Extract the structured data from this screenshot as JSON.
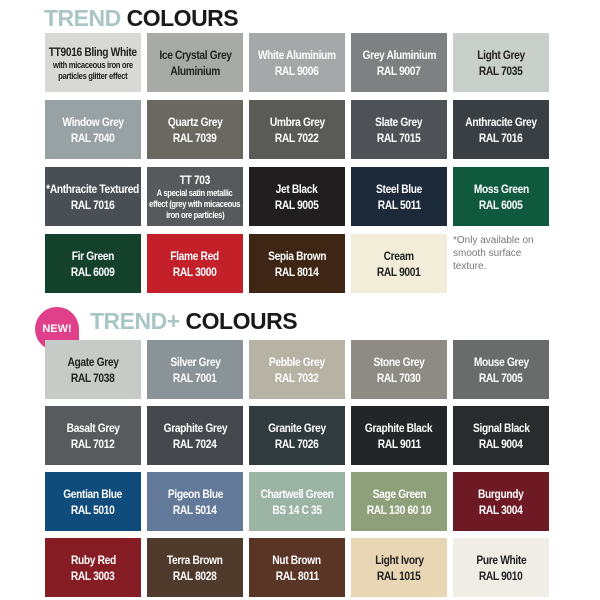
{
  "section1": {
    "title_a": "TREND",
    "title_b": "COLOURS",
    "swatches": [
      {
        "name": "TT9016 Bling White",
        "sub": [
          "with micaceous iron ore",
          "particles glitter effect"
        ],
        "color": "#d8d8d6",
        "text": "#222"
      },
      {
        "name": "Ice Crystal Grey",
        "code": "Aluminium",
        "color": "#a8aaa8",
        "text": "#222"
      },
      {
        "name": "White Aluminium",
        "code": "RAL 9006",
        "color": "#a5a7a8",
        "text": "#fff"
      },
      {
        "name": "Grey Aluminium",
        "code": "RAL 9007",
        "color": "#7e8081",
        "text": "#fff"
      },
      {
        "name": "Light Grey",
        "code": "RAL 7035",
        "color": "#c9cfcb",
        "text": "#222"
      },
      {
        "name": "Window Grey",
        "code": "RAL 7040",
        "color": "#98a1a4",
        "text": "#fff"
      },
      {
        "name": "Quartz Grey",
        "code": "RAL 7039",
        "color": "#6b6862",
        "text": "#fff"
      },
      {
        "name": "Umbra Grey",
        "code": "RAL 7022",
        "color": "#5a5a57",
        "text": "#fff"
      },
      {
        "name": "Slate Grey",
        "code": "RAL 7015",
        "color": "#4e5257",
        "text": "#fff"
      },
      {
        "name": "Anthracite Grey",
        "code": "RAL 7016",
        "color": "#393f43",
        "text": "#fff"
      },
      {
        "name": "*Anthracite Textured",
        "code": "RAL 7016",
        "color": "#4a4e55",
        "text": "#fff"
      },
      {
        "name": "TT 703",
        "sub": [
          "A special satin metallic",
          "effect (grey with micaceous",
          "iron ore particles)"
        ],
        "color": "#57595c",
        "text": "#fff"
      },
      {
        "name": "Jet Black",
        "code": "RAL 9005",
        "color": "#211e1f",
        "text": "#fff"
      },
      {
        "name": "Steel Blue",
        "code": "RAL 5011",
        "color": "#1c2a3a",
        "text": "#fff"
      },
      {
        "name": "Moss Green",
        "code": "RAL 6005",
        "color": "#0f5a3e",
        "text": "#fff"
      },
      {
        "name": "Fir Green",
        "code": "RAL 6009",
        "color": "#14412c",
        "text": "#fff"
      },
      {
        "name": "Flame Red",
        "code": "RAL 3000",
        "color": "#c3202a",
        "text": "#fff"
      },
      {
        "name": "Sepia Brown",
        "code": "RAL 8014",
        "color": "#3f2614",
        "text": "#fff"
      },
      {
        "name": "Cream",
        "code": "RAL 9001",
        "color": "#f1edd9",
        "text": "#222"
      }
    ],
    "footnote": "*Only available on smooth surface texture."
  },
  "section2": {
    "badge": "NEW!",
    "title_a": "TREND+",
    "title_b": "COLOURS",
    "swatches": [
      {
        "name": "Agate Grey",
        "code": "RAL 7038",
        "color": "#c6cbc8",
        "text": "#222"
      },
      {
        "name": "Silver Grey",
        "code": "RAL 7001",
        "color": "#8a9498",
        "text": "#fff"
      },
      {
        "name": "Pebble Grey",
        "code": "RAL 7032",
        "color": "#b7b3a4",
        "text": "#fff"
      },
      {
        "name": "Stone Grey",
        "code": "RAL 7030",
        "color": "#8d8b83",
        "text": "#fff"
      },
      {
        "name": "Mouse Grey",
        "code": "RAL 7005",
        "color": "#6a6c6b",
        "text": "#fff"
      },
      {
        "name": "Basalt Grey",
        "code": "RAL 7012",
        "color": "#575b5d",
        "text": "#fff"
      },
      {
        "name": "Graphite Grey",
        "code": "RAL 7024",
        "color": "#45494d",
        "text": "#fff"
      },
      {
        "name": "Granite Grey",
        "code": "RAL 7026",
        "color": "#2f3b3d",
        "text": "#fff"
      },
      {
        "name": "Graphite Black",
        "code": "RAL 9011",
        "color": "#232528",
        "text": "#fff"
      },
      {
        "name": "Signal Black",
        "code": "RAL 9004",
        "color": "#2a2b2d",
        "text": "#fff"
      },
      {
        "name": "Gentian Blue",
        "code": "RAL 5010",
        "color": "#0f4c7c",
        "text": "#fff"
      },
      {
        "name": "Pigeon Blue",
        "code": "RAL 5014",
        "color": "#62799a",
        "text": "#fff"
      },
      {
        "name": "Chartwell Green",
        "code": "BS 14 C 35",
        "color": "#9bb4a4",
        "text": "#fff"
      },
      {
        "name": "Sage Green",
        "code": "RAL 130 60 10",
        "color": "#8da07a",
        "text": "#fff"
      },
      {
        "name": "Burgundy",
        "code": "RAL 3004",
        "color": "#6e1a24",
        "text": "#fff"
      },
      {
        "name": "Ruby Red",
        "code": "RAL 3003",
        "color": "#861d25",
        "text": "#fff"
      },
      {
        "name": "Terra Brown",
        "code": "RAL 8028",
        "color": "#4f3a2b",
        "text": "#fff"
      },
      {
        "name": "Nut Brown",
        "code": "RAL 8011",
        "color": "#5a3424",
        "text": "#fff"
      },
      {
        "name": "Light Ivory",
        "code": "RAL 1015",
        "color": "#e8d6b4",
        "text": "#222"
      },
      {
        "name": "Pure White",
        "code": "RAL 9010",
        "color": "#efede6",
        "text": "#222"
      }
    ]
  }
}
